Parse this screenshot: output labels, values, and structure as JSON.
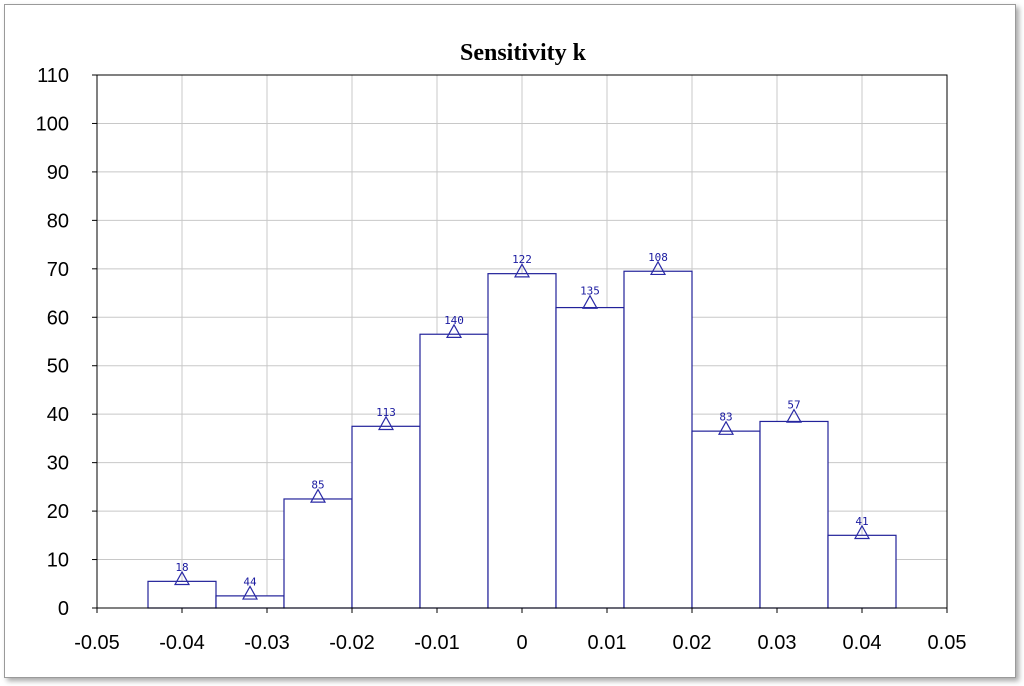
{
  "chart_data": {
    "type": "bar",
    "title": "Sensitivity k",
    "xlim": [
      -0.05,
      0.05
    ],
    "ylim": [
      0,
      110
    ],
    "x_ticks": [
      "-0.05",
      "-0.04",
      "-0.03",
      "-0.02",
      "-0.01",
      "0",
      "0.01",
      "0.02",
      "0.03",
      "0.04",
      "0.05"
    ],
    "y_ticks": [
      "0",
      "10",
      "20",
      "30",
      "40",
      "50",
      "60",
      "70",
      "80",
      "90",
      "100",
      "110"
    ],
    "grid": true,
    "bins": [
      {
        "center": -0.04,
        "value": 5.5,
        "label": "18"
      },
      {
        "center": -0.032,
        "value": 2.5,
        "label": "44"
      },
      {
        "center": -0.024,
        "value": 22.5,
        "label": "85"
      },
      {
        "center": -0.016,
        "value": 37.5,
        "label": "113"
      },
      {
        "center": -0.008,
        "value": 56.5,
        "label": "140"
      },
      {
        "center": 0.0,
        "value": 69,
        "label": "122"
      },
      {
        "center": 0.008,
        "value": 62,
        "label": "135"
      },
      {
        "center": 0.016,
        "value": 69.5,
        "label": "108"
      },
      {
        "center": 0.024,
        "value": 36.5,
        "label": "83"
      },
      {
        "center": 0.032,
        "value": 38.5,
        "label": "57"
      },
      {
        "center": 0.04,
        "value": 15,
        "label": "41"
      }
    ],
    "markers": [
      {
        "x": -0.04,
        "y": 6
      },
      {
        "x": -0.032,
        "y": 3
      },
      {
        "x": -0.024,
        "y": 23
      },
      {
        "x": -0.016,
        "y": 38
      },
      {
        "x": -0.008,
        "y": 57
      },
      {
        "x": 0.0,
        "y": 69.5
      },
      {
        "x": 0.008,
        "y": 63
      },
      {
        "x": 0.016,
        "y": 70
      },
      {
        "x": 0.024,
        "y": 37
      },
      {
        "x": 0.032,
        "y": 39.5
      },
      {
        "x": 0.04,
        "y": 15.5
      }
    ],
    "bin_width": 0.008
  }
}
